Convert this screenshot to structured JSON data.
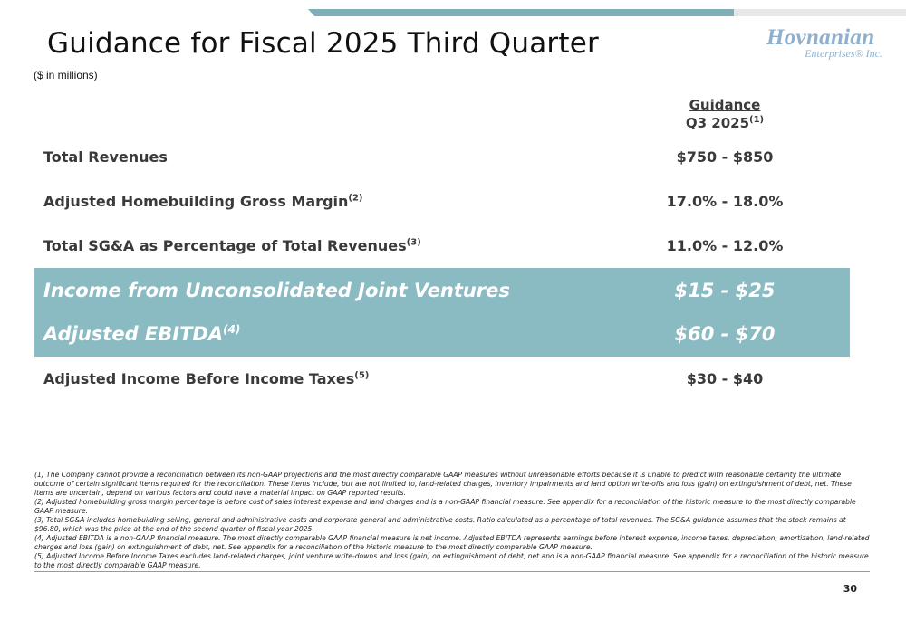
{
  "slide": {
    "title": "Guidance for Fiscal 2025 Third Quarter",
    "units": "($ in millions)",
    "page_number": "30"
  },
  "logo": {
    "main": "Hovnanian",
    "sub": "Enterprises® Inc."
  },
  "column_header": {
    "line1": "Guidance",
    "line2": "Q3 2025",
    "note": "(1)"
  },
  "rows": [
    {
      "label": "Total Revenues",
      "note": "",
      "value": "$750 - $850"
    },
    {
      "label": "Adjusted Homebuilding Gross Margin",
      "note": "(2)",
      "value": "17.0% - 18.0%"
    },
    {
      "label": "Total SG&A as Percentage of Total Revenues",
      "note": "(3)",
      "value": "11.0% - 12.0%"
    },
    {
      "label": "Income from Unconsolidated Joint Ventures",
      "note": "",
      "value": "$15 - $25"
    },
    {
      "label": "Adjusted EBITDA",
      "note": "(4)",
      "value": "$60 - $70"
    },
    {
      "label": "Adjusted Income Before Income Taxes",
      "note": "(5)",
      "value": "$30 - $40"
    }
  ],
  "footnotes": [
    "(1) The Company cannot provide a reconciliation between its non-GAAP projections and the most directly comparable GAAP measures without unreasonable efforts because it is unable to predict with reasonable certainty the ultimate outcome of certain significant items required for the reconciliation. These items include, but are not limited to, land-related charges, inventory impairments and land option write-offs and loss (gain) on extinguishment of debt, net. These items are uncertain, depend on various factors and could have a material impact on GAAP reported results.",
    "(2) Adjusted homebuilding gross margin percentage is before cost of sales interest expense and land charges and is a non-GAAP financial measure. See appendix for a reconciliation of the historic measure to the most directly comparable GAAP measure.",
    "(3) Total SG&A includes homebuilding selling, general and administrative costs and corporate general and administrative costs. Ratio calculated as a percentage of total revenues. The SG&A guidance assumes that the stock remains at $96.80, which was the price at the end of the second quarter of fiscal year 2025.",
    "(4) Adjusted EBITDA is a non-GAAP financial measure. The most directly comparable GAAP financial measure is net income. Adjusted EBITDA represents earnings before interest expense, income taxes, depreciation, amortization, land-related charges and loss (gain) on extinguishment of debt, net. See appendix for a reconciliation of the historic measure to the most directly comparable GAAP measure.",
    "(5) Adjusted Income Before Income Taxes excludes land-related charges, joint venture write-downs and loss (gain) on extinguishment of debt, net and is a non-GAAP financial measure. See appendix for a reconciliation of the historic measure to the most directly comparable GAAP measure."
  ],
  "colors": {
    "accent_bar": "#7fafb6",
    "highlight_band": "#8abbc3",
    "logo": "#8fb0cc"
  }
}
